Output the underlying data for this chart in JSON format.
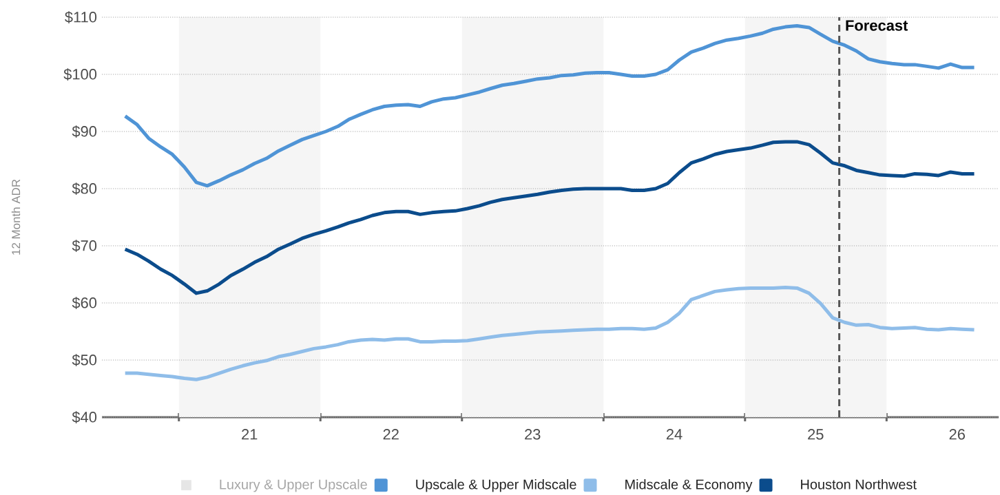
{
  "chart_data": {
    "type": "line",
    "ylabel": "12 Month ADR",
    "x": [
      "2020-08-15",
      "2020-09-15",
      "2020-10-15",
      "2020-11-15",
      "2020-12-15",
      "2021-01-15",
      "2021-02-15",
      "2021-03-15",
      "2021-04-15",
      "2021-05-15",
      "2021-06-15",
      "2021-07-15",
      "2021-08-15",
      "2021-09-15",
      "2021-10-15",
      "2021-11-15",
      "2021-12-15",
      "2022-01-15",
      "2022-02-15",
      "2022-03-15",
      "2022-04-15",
      "2022-05-15",
      "2022-06-15",
      "2022-07-15",
      "2022-08-15",
      "2022-09-15",
      "2022-10-15",
      "2022-11-15",
      "2022-12-15",
      "2023-01-15",
      "2023-02-15",
      "2023-03-15",
      "2023-04-15",
      "2023-05-15",
      "2023-06-15",
      "2023-07-15",
      "2023-08-15",
      "2023-09-15",
      "2023-10-15",
      "2023-11-15",
      "2023-12-15",
      "2024-01-15",
      "2024-02-15",
      "2024-03-15",
      "2024-04-15",
      "2024-05-15",
      "2024-06-15",
      "2024-07-15",
      "2024-08-15",
      "2024-09-15",
      "2024-10-15",
      "2024-11-15",
      "2024-12-15",
      "2025-01-15",
      "2025-02-15",
      "2025-03-15",
      "2025-04-15",
      "2025-05-15",
      "2025-06-15",
      "2025-07-15",
      "2025-08-15",
      "2025-09-15",
      "2025-10-15",
      "2025-11-15",
      "2025-12-15",
      "2026-01-15",
      "2026-02-15",
      "2026-03-15",
      "2026-04-15",
      "2026-05-15",
      "2026-06-15",
      "2026-07-15",
      "2026-08-15"
    ],
    "series": [
      {
        "name": "Luxury & Upper Upscale",
        "color": "#e6e6e6",
        "values": [
          null,
          null,
          null,
          null,
          null,
          null,
          null,
          null,
          null,
          null,
          null,
          null,
          null,
          null,
          null,
          null,
          null,
          null,
          null,
          null,
          null,
          null,
          null,
          null,
          null,
          null,
          null,
          null,
          null,
          null,
          null,
          null,
          null,
          null,
          null,
          null,
          null,
          null,
          null,
          null,
          null,
          null,
          null,
          null,
          null,
          null,
          null,
          null,
          null,
          null,
          null,
          null,
          null,
          null,
          null,
          null,
          null,
          null,
          null,
          null,
          null,
          null,
          null,
          null,
          null,
          null,
          null,
          null,
          null,
          null,
          null,
          null,
          null
        ]
      },
      {
        "name": "Upscale & Upper Midscale",
        "color": "#4f94d6",
        "values": [
          92.7,
          91.2,
          88.8,
          87.3,
          86.0,
          83.8,
          81.1,
          80.5,
          81.4,
          82.4,
          83.3,
          84.4,
          85.3,
          86.6,
          87.6,
          88.6,
          89.3,
          90.0,
          90.9,
          92.1,
          93.0,
          93.8,
          94.4,
          94.6,
          94.7,
          94.4,
          95.2,
          95.7,
          95.9,
          96.4,
          96.9,
          97.5,
          98.1,
          98.4,
          98.8,
          99.2,
          99.4,
          99.8,
          99.9,
          100.2,
          100.3,
          100.3,
          100.0,
          99.7,
          99.7,
          100.0,
          100.8,
          102.5,
          103.9,
          104.6,
          105.4,
          106.0,
          106.3,
          106.7,
          107.2,
          107.9,
          108.3,
          108.5,
          108.2,
          107.0,
          105.8,
          105.1,
          104.1,
          102.7,
          102.2,
          101.9,
          101.7,
          101.7,
          101.4,
          101.1,
          101.8,
          101.2,
          101.2
        ]
      },
      {
        "name": "Midscale & Economy",
        "color": "#8fbde9",
        "values": [
          47.7,
          47.7,
          47.5,
          47.3,
          47.1,
          46.8,
          46.6,
          47.0,
          47.7,
          48.4,
          49.0,
          49.5,
          49.9,
          50.6,
          51.0,
          51.5,
          52.0,
          52.3,
          52.7,
          53.2,
          53.5,
          53.6,
          53.5,
          53.7,
          53.7,
          53.2,
          53.2,
          53.3,
          53.3,
          53.4,
          53.7,
          54.0,
          54.3,
          54.5,
          54.7,
          54.9,
          55.0,
          55.1,
          55.2,
          55.3,
          55.4,
          55.4,
          55.5,
          55.5,
          55.4,
          55.6,
          56.6,
          58.2,
          60.6,
          61.3,
          62.0,
          62.3,
          62.5,
          62.6,
          62.6,
          62.6,
          62.7,
          62.6,
          61.7,
          59.9,
          57.4,
          56.6,
          56.1,
          56.2,
          55.7,
          55.5,
          55.6,
          55.7,
          55.4,
          55.3,
          55.5,
          55.4,
          55.3
        ]
      },
      {
        "name": "Houston Northwest",
        "color": "#0b4c8c",
        "values": [
          69.4,
          68.5,
          67.3,
          65.9,
          64.8,
          63.3,
          61.7,
          62.1,
          63.3,
          64.8,
          65.9,
          67.1,
          68.1,
          69.4,
          70.3,
          71.3,
          72.0,
          72.6,
          73.3,
          74.0,
          74.6,
          75.3,
          75.8,
          76.0,
          76.0,
          75.5,
          75.8,
          76.0,
          76.1,
          76.5,
          77.0,
          77.6,
          78.1,
          78.4,
          78.7,
          79.0,
          79.4,
          79.7,
          79.9,
          80.0,
          80.0,
          80.0,
          80.0,
          79.7,
          79.7,
          80.0,
          80.9,
          82.8,
          84.5,
          85.2,
          86.0,
          86.5,
          86.8,
          87.1,
          87.6,
          88.1,
          88.2,
          88.2,
          87.7,
          86.2,
          84.5,
          84.0,
          83.2,
          82.8,
          82.4,
          82.3,
          82.2,
          82.6,
          82.5,
          82.3,
          82.9,
          82.6,
          82.6
        ]
      }
    ],
    "xlim": [
      "2020-06-16",
      "2026-10-17"
    ],
    "xticks": [
      {
        "value": "2021-01-01",
        "label": null
      },
      {
        "value": "2021-07-02",
        "label": "21"
      },
      {
        "value": "2022-01-01",
        "label": null
      },
      {
        "value": "2022-07-02",
        "label": "22"
      },
      {
        "value": "2023-01-01",
        "label": null
      },
      {
        "value": "2023-07-02",
        "label": "23"
      },
      {
        "value": "2024-01-01",
        "label": null
      },
      {
        "value": "2024-07-02",
        "label": "24"
      },
      {
        "value": "2025-01-01",
        "label": null
      },
      {
        "value": "2025-07-02",
        "label": "25"
      },
      {
        "value": "2026-01-01",
        "label": null
      },
      {
        "value": "2026-07-02",
        "label": "26"
      }
    ],
    "ylim": [
      40,
      110
    ],
    "yticks": [
      {
        "value": 40,
        "label": "$40"
      },
      {
        "value": 50,
        "label": "$50"
      },
      {
        "value": 60,
        "label": "$60"
      },
      {
        "value": 70,
        "label": "$70"
      },
      {
        "value": 80,
        "label": "$80"
      },
      {
        "value": 90,
        "label": "$90"
      },
      {
        "value": 100,
        "label": "$100"
      },
      {
        "value": 110,
        "label": "$110"
      }
    ],
    "grid": "y",
    "legend": "bottom",
    "bands": [
      {
        "axis": "x",
        "from": "2021-01-01",
        "to": "2022-01-01",
        "label": null,
        "color": "#f5f5f5"
      },
      {
        "axis": "x",
        "from": "2023-01-01",
        "to": "2024-01-01",
        "label": null,
        "color": "#f5f5f5"
      },
      {
        "axis": "x",
        "from": "2025-01-01",
        "to": "2026-01-01",
        "label": null,
        "color": "#f5f5f5"
      }
    ],
    "ref_lines": [
      {
        "axis": "x",
        "value": "2025-09-01",
        "label": "Forecast",
        "color": "#555555",
        "line_style": "dashed"
      }
    ]
  }
}
